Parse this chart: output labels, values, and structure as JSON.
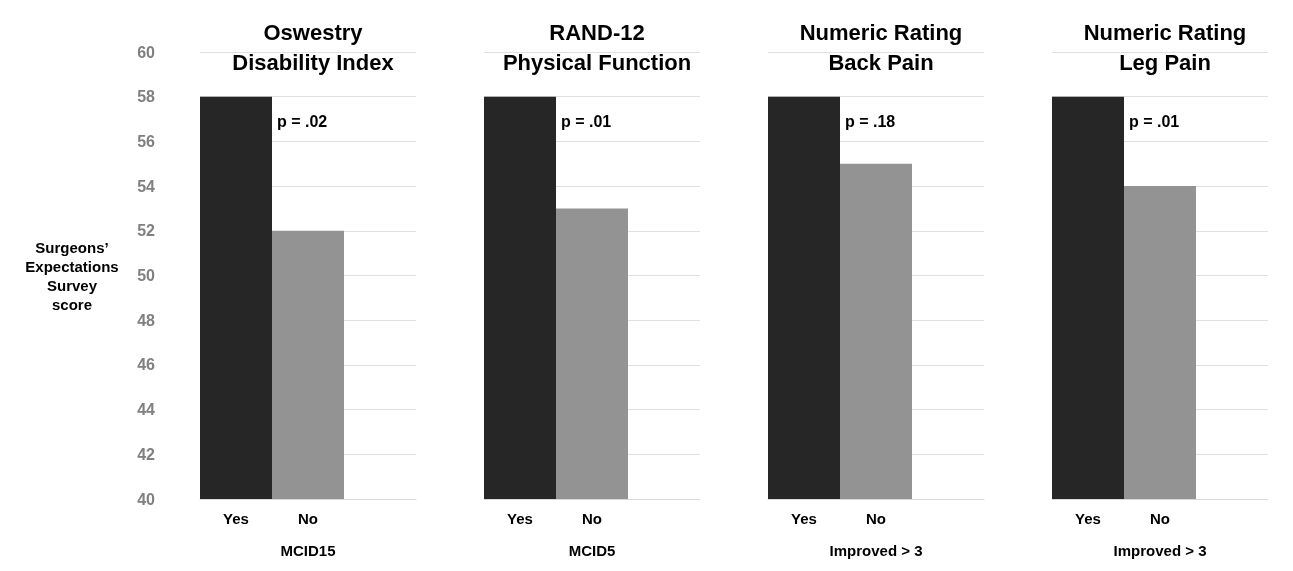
{
  "chart_data": [
    {
      "type": "bar",
      "title": "Oswestry\nDisability Index",
      "ylabel": "Surgeons’\nExpectations\nSurvey\nscore",
      "xlabel": "MCID15",
      "categories": [
        "Yes",
        "No",
        null
      ],
      "values": [
        58,
        52,
        null
      ],
      "colors": [
        "#262626",
        "#939393",
        "#939393"
      ],
      "ylim": [
        40,
        60
      ],
      "yticks": [
        40,
        42,
        44,
        46,
        48,
        50,
        52,
        54,
        56,
        58,
        60
      ],
      "grid": "y",
      "annotations": [
        "p = .02"
      ]
    },
    {
      "type": "bar",
      "title": "RAND-12\nPhysical Function",
      "xlabel": "MCID5",
      "categories": [
        "Yes",
        "No",
        null
      ],
      "values": [
        58,
        53,
        null
      ],
      "colors": [
        "#262626",
        "#939393",
        "#939393"
      ],
      "ylim": [
        40,
        60
      ],
      "yticks": [
        40,
        42,
        44,
        46,
        48,
        50,
        52,
        54,
        56,
        58,
        60
      ],
      "grid": "y",
      "tick_labels": "x",
      "annotations": [
        "p = .01"
      ]
    },
    {
      "type": "bar",
      "title": "Numeric Rating\nBack Pain",
      "xlabel": "Improved > 3",
      "categories": [
        "Yes",
        "No",
        null
      ],
      "values": [
        58,
        55,
        null
      ],
      "colors": [
        "#262626",
        "#939393",
        "#939393"
      ],
      "ylim": [
        40,
        60
      ],
      "yticks": [
        40,
        42,
        44,
        46,
        48,
        50,
        52,
        54,
        56,
        58,
        60
      ],
      "grid": "y",
      "tick_labels": "x",
      "annotations": [
        "p = .18"
      ]
    },
    {
      "type": "bar",
      "title": "Numeric Rating\nLeg Pain",
      "xlabel": "Improved > 3",
      "categories": [
        "Yes",
        "No",
        null
      ],
      "values": [
        58,
        54,
        null
      ],
      "colors": [
        "#262626",
        "#939393",
        "#939393"
      ],
      "ylim": [
        40,
        60
      ],
      "yticks": [
        40,
        42,
        44,
        46,
        48,
        50,
        52,
        54,
        56,
        58,
        60
      ],
      "grid": "y",
      "tick_labels": "x",
      "annotations": [
        "p = .01"
      ]
    }
  ]
}
